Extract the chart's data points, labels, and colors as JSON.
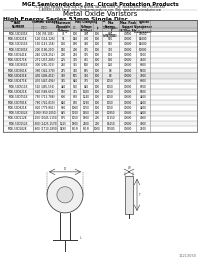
{
  "company": "MGE Semiconductor, Inc. Circuit Protection Products",
  "addr1": "75-100 Dale Paesano, Suite 218, 1 in Atlanta, GA, USA 30339  Tel: 750-850-5055  Fax: 750-850-XXX",
  "addr2": "1-800XXX-1-XXX  Email: orders@mdesemiconductor.com  Web: www.mdesemiconductor.com",
  "title": "Metal Oxide Varistors",
  "subtitle": "High Energy Series 53mm Single Disc",
  "header1": [
    "PART\nNUMBER",
    "Varistor Voltage",
    "Maximum\nAllowable\nVoltage",
    "",
    "Max Clamping\nVoltage\n(8/20μs)",
    "",
    "Max\nEnergy\nJ\n(kW/50Ω)",
    "Max. Peak\nCurrent\n(8/20μs A)\nPeak",
    "Typical\nCapacitance\n(Reference)\npF"
  ],
  "header2": [
    "",
    "V(DC)",
    "AC\n(rms)",
    "DC",
    "V",
    "Ip",
    "10/1000\nμsec",
    "Peak",
    "(pF)"
  ],
  "rows": [
    [
      "MDE-53D101K",
      "100 (95-105)",
      "75",
      "100",
      "390",
      "100",
      "680",
      "70000",
      "18000"
    ],
    [
      "MDE-53D121K",
      "120 (114-126)",
      "95",
      "140",
      "430",
      "100",
      "570",
      "70000",
      "14000"
    ],
    [
      "MDE-53D151K",
      "150 (143-158)",
      "130",
      "180",
      "360",
      "100",
      "570",
      "70000",
      "14000"
    ],
    [
      "MDE-53D201K",
      "200 (190-210)",
      "150",
      "200",
      "335",
      "100",
      "370",
      "70000",
      "10000"
    ],
    [
      "MDE-53D241K",
      "240 (228-252)",
      "200",
      "270",
      "395",
      "100",
      "170",
      "70000",
      "9700"
    ],
    [
      "MDE-53D271K",
      "271 (257-285)",
      "225",
      "335",
      "455",
      "100",
      "130",
      "70000",
      "7400"
    ],
    [
      "MDE-53D301K",
      "300 (285-315)",
      "250",
      "355",
      "500",
      "100",
      "120",
      "70000",
      "6600"
    ],
    [
      "MDE-53D361K",
      "360 (342-378)",
      "275",
      "350",
      "595",
      "100",
      "88",
      "70000",
      "5300"
    ],
    [
      "MDE-53D431K",
      "430 (409-451)",
      "350",
      "505",
      "710",
      "100",
      "88",
      "70000",
      "7800"
    ],
    [
      "MDE-53D471K",
      "470 (447-494)",
      "385",
      "640",
      "775",
      "100",
      "1050",
      "70000",
      "6600"
    ],
    [
      "MDE-53D511K",
      "510 (485-536)",
      "420",
      "550",
      "840",
      "100",
      "1050",
      "70000",
      "6500"
    ],
    [
      "MDE-53D621K",
      "620 (589-651)",
      "510",
      "715",
      "1020",
      "100",
      "1050",
      "70000",
      "5600"
    ],
    [
      "MDE-53D751K",
      "750 (713-788)",
      "600",
      "850",
      "1240",
      "100",
      "1050",
      "70000",
      "4400"
    ],
    [
      "MDE-53D781K",
      "780 (741-819)",
      "640",
      "850",
      "1290",
      "100",
      "1050",
      "70000",
      "4400"
    ],
    [
      "MDE-53D821K",
      "820 (779-861)",
      "680",
      "1060",
      "1350",
      "100",
      "1050",
      "70000",
      "4400"
    ],
    [
      "MDE-53D102K",
      "1000 (950-1050)",
      "825",
      "1100",
      "1650",
      "100",
      "10850",
      "70000",
      "4200"
    ],
    [
      "MDE-53D112K",
      "1100 (1045-1155)",
      "895",
      "1050",
      "1800",
      "200",
      "11150",
      "70000",
      "4000"
    ],
    [
      "MDE-53D152K",
      "1500 (1425-1575)",
      "1225",
      "1800",
      "2500",
      "200",
      "16150",
      "70000",
      "3000"
    ],
    [
      "MDE-53D182K",
      "1800 (1710-1890)",
      "1490",
      "P.O.R",
      "P.O.R",
      "1000",
      "19500",
      "70000",
      "2700"
    ]
  ],
  "highlight_row": 8,
  "bg_color": "#ffffff",
  "header_bg": "#c8c8c8",
  "border_color": "#888888",
  "text_color": "#000000",
  "footnote": "11213050"
}
